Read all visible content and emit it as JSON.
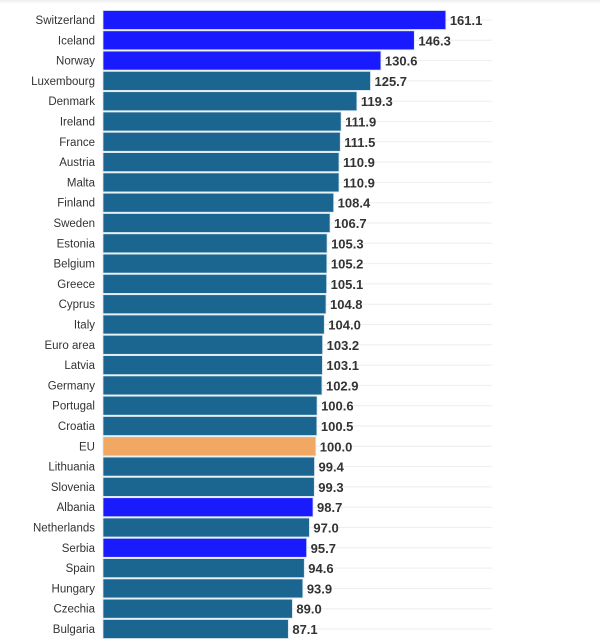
{
  "chart_data": {
    "type": "bar",
    "orientation": "horizontal",
    "categories": [
      "Switzerland",
      "Iceland",
      "Norway",
      "Luxembourg",
      "Denmark",
      "Ireland",
      "France",
      "Austria",
      "Malta",
      "Finland",
      "Sweden",
      "Estonia",
      "Belgium",
      "Greece",
      "Cyprus",
      "Italy",
      "Euro area",
      "Latvia",
      "Germany",
      "Portugal",
      "Croatia",
      "EU",
      "Lithuania",
      "Slovenia",
      "Albania",
      "Netherlands",
      "Serbia",
      "Spain",
      "Hungary",
      "Czechia",
      "Bulgaria"
    ],
    "values": [
      161.1,
      146.3,
      130.6,
      125.7,
      119.3,
      111.9,
      111.5,
      110.9,
      110.9,
      108.4,
      106.7,
      105.3,
      105.2,
      105.1,
      104.8,
      104.0,
      103.2,
      103.1,
      102.9,
      100.6,
      100.5,
      100.0,
      99.4,
      99.3,
      98.7,
      97.0,
      95.7,
      94.6,
      93.9,
      89.0,
      87.1
    ],
    "highlight": {
      "Switzerland": "non-eu",
      "Iceland": "non-eu",
      "Norway": "non-eu",
      "Albania": "non-eu",
      "Serbia": "non-eu",
      "EU": "eu"
    },
    "colors": {
      "default": "#1b6690",
      "non-eu": "#1a1aff",
      "eu": "#f0a862"
    },
    "xlim": [
      0,
      170
    ],
    "grid": true,
    "title": "",
    "xlabel": "",
    "ylabel": ""
  }
}
